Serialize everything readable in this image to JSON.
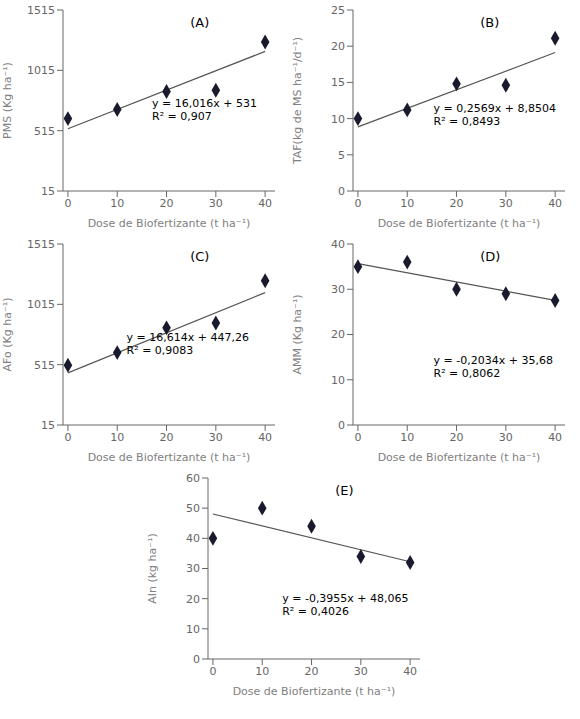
{
  "chart_data": [
    {
      "type": "scatter",
      "title": "(A)",
      "xlabel": "Dose de Biofertizante (t ha⁻¹)",
      "ylabel": "PMS (Kg ha⁻¹)",
      "annotations": [
        "y = 16,016x + 531",
        "R² = 0,907"
      ],
      "series": [
        {
          "type": "line",
          "color": "#555555",
          "line_style": "solid",
          "x": [
            0,
            40
          ],
          "values": [
            531,
            1171.64
          ]
        },
        {
          "type": "scatter",
          "color": "#1a1a2e",
          "marker": "diamond",
          "x": [
            0,
            10,
            20,
            30,
            40
          ],
          "values": [
            615,
            690,
            840,
            850,
            1250
          ]
        }
      ],
      "xlim": [
        -1,
        42
      ],
      "xticks": [
        0,
        10,
        20,
        30,
        40
      ],
      "ylim": [
        15,
        1515
      ],
      "yticks": [
        15,
        515,
        1015,
        1515
      ],
      "grid": false
    },
    {
      "type": "scatter",
      "title": "(B)",
      "xlabel": "Dose de Biofertizante (t ha⁻¹)",
      "ylabel": "TAF(kg de MS ha⁻¹/d⁻¹)",
      "annotations": [
        "y = 0,2569x + 8,8504",
        "R² = 0,8493"
      ],
      "series": [
        {
          "type": "line",
          "color": "#555555",
          "line_style": "solid",
          "x": [
            0,
            40
          ],
          "values": [
            8.8504,
            19.1264
          ]
        },
        {
          "type": "scatter",
          "color": "#1a1a2e",
          "marker": "diamond",
          "x": [
            0,
            10,
            20,
            30,
            40
          ],
          "values": [
            10.0,
            11.2,
            14.8,
            14.6,
            21.1
          ]
        }
      ],
      "xlim": [
        -1,
        42
      ],
      "xticks": [
        0,
        10,
        20,
        30,
        40
      ],
      "ylim": [
        0,
        25
      ],
      "yticks": [
        0,
        5,
        10,
        15,
        20,
        25
      ],
      "grid": false
    },
    {
      "type": "scatter",
      "title": "(C)",
      "xlabel": "Dose de Biofertizante (t ha⁻¹)",
      "ylabel": "AFo (Kg ha⁻¹)",
      "annotations": [
        "y = 16,614x + 447,26",
        "R² = 0,9083"
      ],
      "series": [
        {
          "type": "line",
          "color": "#555555",
          "line_style": "solid",
          "x": [
            0,
            40
          ],
          "values": [
            447.26,
            1111.82
          ]
        },
        {
          "type": "scatter",
          "color": "#1a1a2e",
          "marker": "diamond",
          "x": [
            0,
            10,
            20,
            30,
            40
          ],
          "values": [
            510,
            615,
            820,
            860,
            1210
          ]
        }
      ],
      "xlim": [
        -1,
        42
      ],
      "xticks": [
        0,
        10,
        20,
        30,
        40
      ],
      "ylim": [
        15,
        1515
      ],
      "yticks": [
        15,
        515,
        1015,
        1515
      ],
      "grid": false
    },
    {
      "type": "scatter",
      "title": "(D)",
      "xlabel": "Dose de Biofertizante (t ha⁻¹)",
      "ylabel": "AMM (Kg ha⁻¹)",
      "annotations": [
        "y = -0,2034x + 35,68",
        "R² = 0,8062"
      ],
      "series": [
        {
          "type": "line",
          "color": "#555555",
          "line_style": "solid",
          "x": [
            0,
            40
          ],
          "values": [
            35.68,
            27.544
          ]
        },
        {
          "type": "scatter",
          "color": "#1a1a2e",
          "marker": "diamond",
          "x": [
            0,
            10,
            20,
            30,
            40
          ],
          "values": [
            35.0,
            36.0,
            30.0,
            29.0,
            27.5
          ]
        }
      ],
      "xlim": [
        -1,
        42
      ],
      "xticks": [
        0,
        10,
        20,
        30,
        40
      ],
      "ylim": [
        0,
        40
      ],
      "yticks": [
        0,
        10,
        20,
        30,
        40
      ],
      "grid": false
    },
    {
      "type": "scatter",
      "title": "(E)",
      "xlabel": "Dose de Biofertizante (t ha⁻¹)",
      "ylabel": "AIn (kg ha⁻¹)",
      "annotations": [
        "y = -0,3955x + 48,065",
        "R² = 0,4026"
      ],
      "series": [
        {
          "type": "line",
          "color": "#555555",
          "line_style": "solid",
          "x": [
            0,
            40
          ],
          "values": [
            48.065,
            32.245
          ]
        },
        {
          "type": "scatter",
          "color": "#1a1a2e",
          "marker": "diamond",
          "x": [
            0,
            10,
            20,
            30,
            40
          ],
          "values": [
            40,
            50,
            44,
            34,
            32
          ]
        }
      ],
      "xlim": [
        -1,
        42
      ],
      "xticks": [
        0,
        10,
        20,
        30,
        40
      ],
      "ylim": [
        0,
        60
      ],
      "yticks": [
        0,
        10,
        20,
        30,
        40,
        50,
        60
      ],
      "grid": false
    }
  ]
}
